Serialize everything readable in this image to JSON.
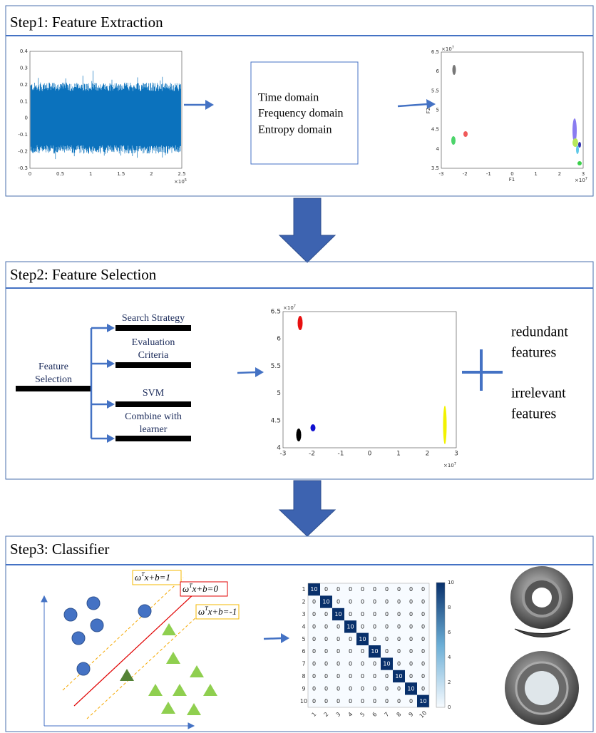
{
  "step1": {
    "title": "Step1: Feature Extraction",
    "signal_plot": {
      "yticks": [
        "0.4",
        "0.3",
        "0.2",
        "0.1",
        "0",
        "-0.1",
        "-0.2",
        "-0.3"
      ],
      "xticks": [
        "0",
        "0.5",
        "1",
        "1.5",
        "2",
        "2.5"
      ],
      "multiplier": "×10",
      "exponent": "5"
    },
    "domains": [
      "Time domain",
      "Frequency domain",
      "Entropy domain"
    ],
    "scatter_plot": {
      "yticks": [
        "6.5",
        "6",
        "5.5",
        "5",
        "4.5",
        "4",
        "3.5"
      ],
      "xticks": [
        "-3",
        "-2",
        "-1",
        "0",
        "1",
        "2",
        "3"
      ],
      "y_label": "F2",
      "x_label": "F1",
      "multiplier": "×10",
      "exponent": "7"
    }
  },
  "step2": {
    "title": "Step2: Feature Selection",
    "root": [
      "Feature",
      "Selection"
    ],
    "branches": [
      [
        "Search Strategy"
      ],
      [
        "Evaluation",
        "Criteria"
      ],
      [
        "SVM"
      ],
      [
        "Combine with",
        "learner"
      ]
    ],
    "scatter_plot": {
      "yticks": [
        "6.5",
        "6",
        "5.5",
        "5",
        "4.5",
        "4"
      ],
      "xticks": [
        "-3",
        "-2",
        "-1",
        "0",
        "1",
        "2",
        "3"
      ],
      "multiplier": "×10",
      "exponent": "7"
    },
    "notes": [
      [
        "redundant",
        "features"
      ],
      [
        "irrelevant",
        "features"
      ]
    ]
  },
  "step3": {
    "title": "Step3: Classifier",
    "equations": [
      {
        "w": "ω",
        "sup": "T",
        "rest": "x+b=1"
      },
      {
        "w": "ω",
        "sup": "T",
        "rest": "x+b=0"
      },
      {
        "w": "ω",
        "sup": "T",
        "rest": "x+b=-1"
      }
    ],
    "confusion_matrix": {
      "labels": [
        "1",
        "2",
        "3",
        "4",
        "5",
        "6",
        "7",
        "8",
        "9",
        "10"
      ],
      "matrix": [
        [
          10,
          0,
          0,
          0,
          0,
          0,
          0,
          0,
          0,
          0
        ],
        [
          0,
          10,
          0,
          0,
          0,
          0,
          0,
          0,
          0,
          0
        ],
        [
          0,
          0,
          10,
          0,
          0,
          0,
          0,
          0,
          0,
          0
        ],
        [
          0,
          0,
          0,
          10,
          0,
          0,
          0,
          0,
          0,
          0
        ],
        [
          0,
          0,
          0,
          0,
          10,
          0,
          0,
          0,
          0,
          0
        ],
        [
          0,
          0,
          0,
          0,
          0,
          10,
          0,
          0,
          0,
          0
        ],
        [
          0,
          0,
          0,
          0,
          0,
          0,
          10,
          0,
          0,
          0
        ],
        [
          0,
          0,
          0,
          0,
          0,
          0,
          0,
          10,
          0,
          0
        ],
        [
          0,
          0,
          0,
          0,
          0,
          0,
          0,
          0,
          10,
          0
        ],
        [
          0,
          0,
          0,
          0,
          0,
          0,
          0,
          0,
          0,
          10
        ]
      ],
      "colorbar_ticks": [
        "0",
        "2",
        "4",
        "6",
        "8",
        "10"
      ]
    }
  }
}
